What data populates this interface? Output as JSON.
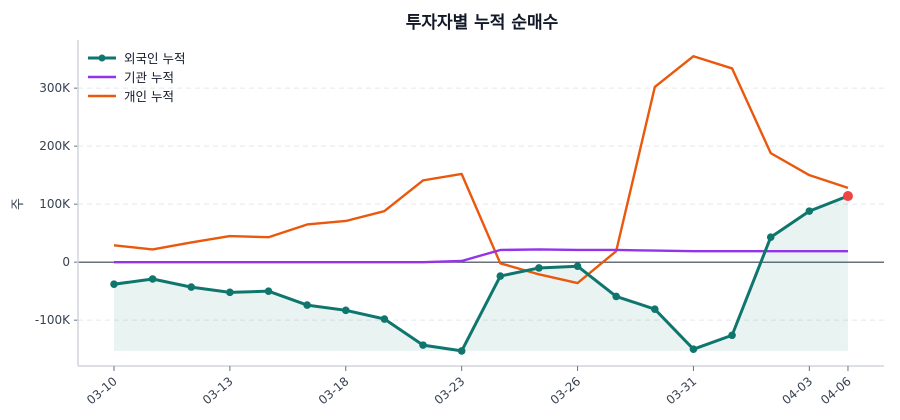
{
  "chart_data": {
    "type": "line",
    "title": "투자자별 누적 순매수",
    "xlabel": "",
    "ylabel": "주",
    "x": [
      "03-10",
      "03-11",
      "03-12",
      "03-13",
      "03-16",
      "03-17",
      "03-18",
      "03-19",
      "03-20",
      "03-23",
      "03-24",
      "03-25",
      "03-26",
      "03-27",
      "03-30",
      "03-31",
      "04-01",
      "04-02",
      "04-03",
      "04-06"
    ],
    "xticks": [
      "03-10",
      "03-13",
      "03-18",
      "03-23",
      "03-26",
      "03-31",
      "04-03",
      "04-06"
    ],
    "ylim": [
      -179000,
      383000
    ],
    "yticks": [
      -100000,
      0,
      100000,
      200000,
      300000
    ],
    "ytick_labels": [
      "-100K",
      "0",
      "100K",
      "200K",
      "300K"
    ],
    "grid": "horizontal dashed",
    "legend_position": "top-left",
    "series": [
      {
        "name": "외국인 누적",
        "color": "#0f766e",
        "markers": true,
        "fill": true,
        "values": [
          -38000,
          -29000,
          -43000,
          -52000,
          -50000,
          -74000,
          -83000,
          -98000,
          -143000,
          -153000,
          -24000,
          -10000,
          -7000,
          -59000,
          -81000,
          -150000,
          -126000,
          43000,
          88000,
          114000
        ]
      },
      {
        "name": "기관 누적",
        "color": "#9333ea",
        "markers": false,
        "values": [
          0,
          0,
          0,
          0,
          0,
          0,
          0,
          0,
          0,
          2000,
          21000,
          22000,
          21000,
          21000,
          20000,
          19000,
          19000,
          19000,
          19000,
          19000
        ]
      },
      {
        "name": "개인 누적",
        "color": "#ea580c",
        "markers": false,
        "values": [
          29000,
          22000,
          34000,
          45000,
          43000,
          65000,
          71000,
          88000,
          141000,
          152000,
          -2000,
          -21000,
          -36000,
          19000,
          302000,
          355000,
          334000,
          188000,
          150000,
          128000
        ]
      }
    ],
    "highlight_color": "#ef4444"
  }
}
